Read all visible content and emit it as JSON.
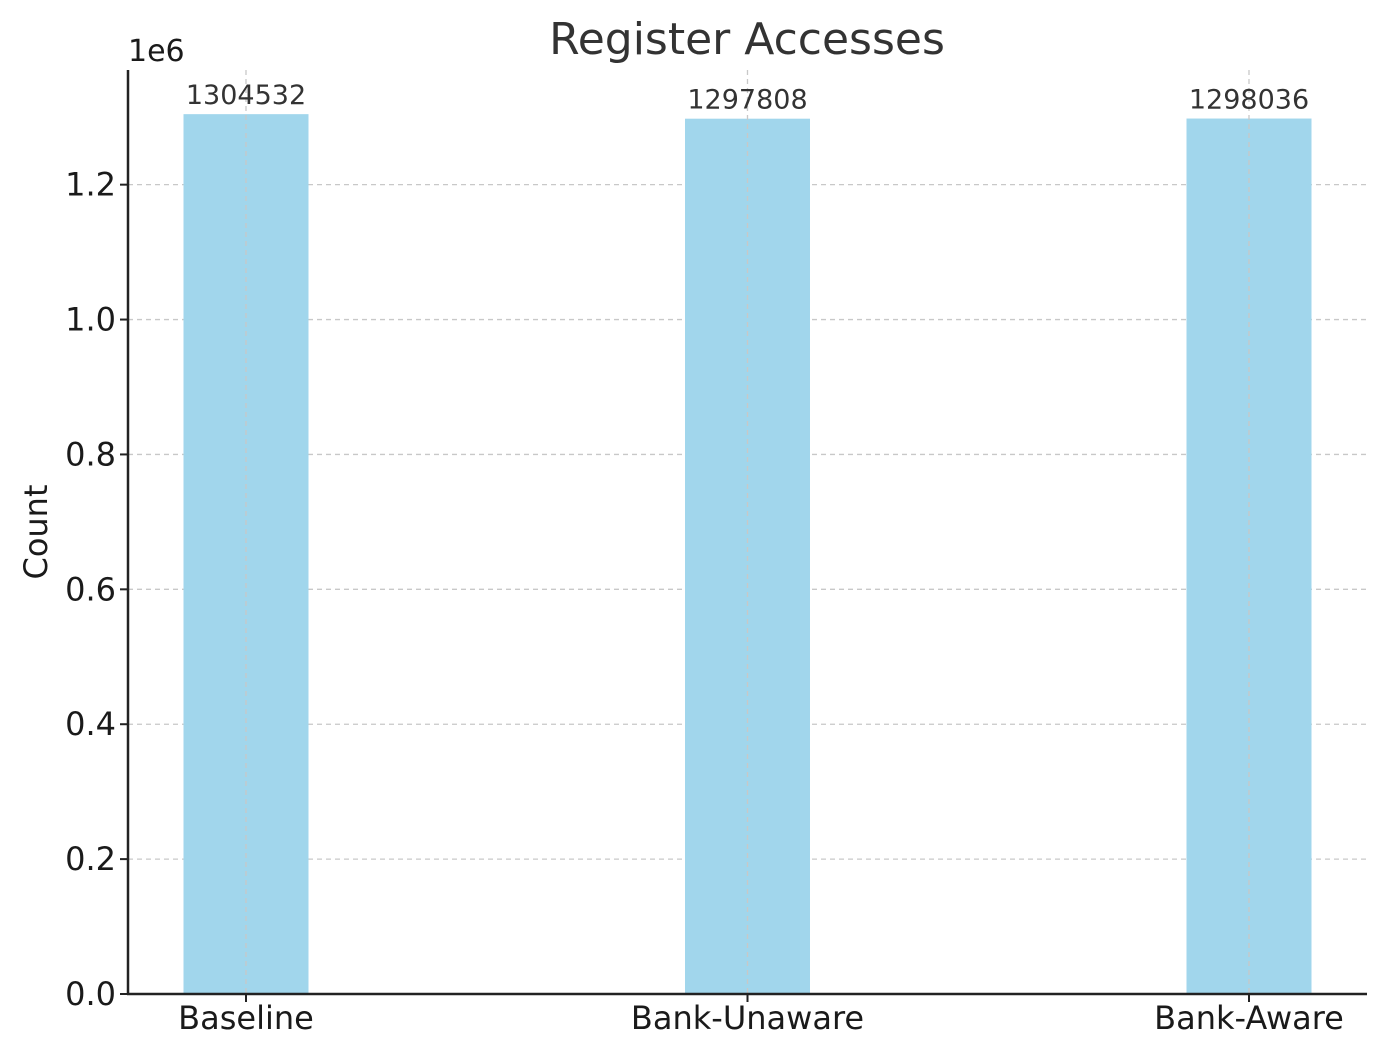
{
  "chart_data": {
    "type": "bar",
    "title": "Register Accesses",
    "xlabel": "",
    "ylabel": "Count",
    "y_offset_label": "1e6",
    "categories": [
      "Baseline",
      "Bank-Unaware",
      "Bank-Aware"
    ],
    "values": [
      1304532,
      1297808,
      1298036
    ],
    "data_labels": [
      "1304532",
      "1297808",
      "1298036"
    ],
    "ylim": [
      0,
      1370000
    ],
    "y_ticks": [
      0,
      200000,
      400000,
      600000,
      800000,
      1000000,
      1200000
    ],
    "y_tick_labels": [
      "0.0",
      "0.2",
      "0.4",
      "0.6",
      "0.8",
      "1.0",
      "1.2"
    ],
    "grid": true,
    "bar_color": "#a1d6ec"
  }
}
